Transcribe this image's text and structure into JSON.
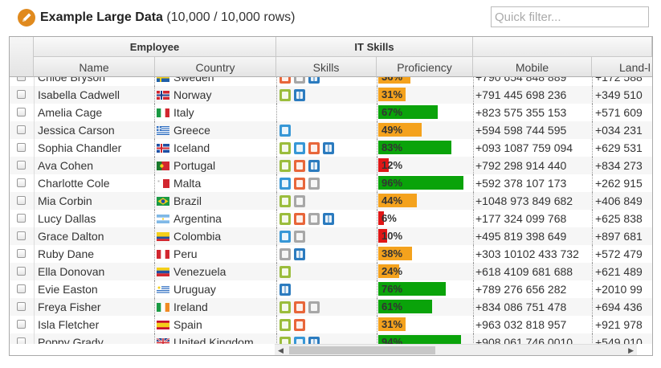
{
  "header": {
    "title": "Example Large Data",
    "row_count": "(10,000 / 10,000 rows)",
    "filter_placeholder": "Quick filter...",
    "logo_icon": "pencil-icon",
    "logo_color": "#e08a1e"
  },
  "groups": [
    "Employee",
    "IT Skills",
    ""
  ],
  "columns": [
    "Name",
    "Country",
    "Skills",
    "Proficiency",
    "Mobile",
    "Land-l"
  ],
  "colors": {
    "high": "#0aa30a",
    "mid": "#f4a21d",
    "low": "#e01717"
  },
  "rows": [
    {
      "name": "Chloe Bryson",
      "country": "Sweden",
      "flag": "sweden",
      "skills": [
        "html5",
        "apple",
        "windows"
      ],
      "proficiency": 36,
      "mobile": "+790 654 848 889",
      "land": "+172 588"
    },
    {
      "name": "Isabella Cadwell",
      "country": "Norway",
      "flag": "norway",
      "skills": [
        "android",
        "windows"
      ],
      "proficiency": 31,
      "mobile": "+791 445 698 236",
      "land": "+349 510"
    },
    {
      "name": "Amelia Cage",
      "country": "Italy",
      "flag": "italy",
      "skills": [],
      "proficiency": 67,
      "mobile": "+823 575 355 153",
      "land": "+571 609"
    },
    {
      "name": "Jessica Carson",
      "country": "Greece",
      "flag": "greece",
      "skills": [
        "css3"
      ],
      "proficiency": 49,
      "mobile": "+594 598 744 595",
      "land": "+034 231"
    },
    {
      "name": "Sophia Chandler",
      "country": "Iceland",
      "flag": "iceland",
      "skills": [
        "android",
        "css3",
        "html5",
        "windows"
      ],
      "proficiency": 83,
      "mobile": "+093 1087 759 094",
      "land": "+629 531"
    },
    {
      "name": "Ava Cohen",
      "country": "Portugal",
      "flag": "portugal",
      "skills": [
        "android",
        "html5",
        "windows"
      ],
      "proficiency": 12,
      "mobile": "+792 298 914 440",
      "land": "+834 273"
    },
    {
      "name": "Charlotte Cole",
      "country": "Malta",
      "flag": "malta",
      "skills": [
        "css3",
        "html5",
        "apple"
      ],
      "proficiency": 96,
      "mobile": "+592 378 107 173",
      "land": "+262 915"
    },
    {
      "name": "Mia Corbin",
      "country": "Brazil",
      "flag": "brazil",
      "skills": [
        "android",
        "apple"
      ],
      "proficiency": 44,
      "mobile": "+1048 973 849 682",
      "land": "+406 849"
    },
    {
      "name": "Lucy Dallas",
      "country": "Argentina",
      "flag": "argentina",
      "skills": [
        "android",
        "html5",
        "apple",
        "windows"
      ],
      "proficiency": 6,
      "mobile": "+177 324 099 768",
      "land": "+625 838"
    },
    {
      "name": "Grace Dalton",
      "country": "Colombia",
      "flag": "colombia",
      "skills": [
        "css3",
        "apple"
      ],
      "proficiency": 10,
      "mobile": "+495 819 398 649",
      "land": "+897 681"
    },
    {
      "name": "Ruby Dane",
      "country": "Peru",
      "flag": "peru",
      "skills": [
        "apple",
        "windows"
      ],
      "proficiency": 38,
      "mobile": "+303 10102 433 732",
      "land": "+572 479"
    },
    {
      "name": "Ella Donovan",
      "country": "Venezuela",
      "flag": "venezuela",
      "skills": [
        "android"
      ],
      "proficiency": 24,
      "mobile": "+618 4109 681 688",
      "land": "+621 489"
    },
    {
      "name": "Evie Easton",
      "country": "Uruguay",
      "flag": "uruguay",
      "skills": [
        "windows"
      ],
      "proficiency": 76,
      "mobile": "+789 276 656 282",
      "land": "+2010 99"
    },
    {
      "name": "Freya Fisher",
      "country": "Ireland",
      "flag": "ireland",
      "skills": [
        "android",
        "html5",
        "apple"
      ],
      "proficiency": 61,
      "mobile": "+834 086 751 478",
      "land": "+694 436"
    },
    {
      "name": "Isla Fletcher",
      "country": "Spain",
      "flag": "spain",
      "skills": [
        "android",
        "html5"
      ],
      "proficiency": 31,
      "mobile": "+963 032 818 957",
      "land": "+921 978"
    },
    {
      "name": "Poppy Grady",
      "country": "United Kingdom",
      "flag": "united-kingdom",
      "skills": [
        "android",
        "css3",
        "windows"
      ],
      "proficiency": 94,
      "mobile": "+908 061 746 0010",
      "land": "+549 010"
    }
  ]
}
